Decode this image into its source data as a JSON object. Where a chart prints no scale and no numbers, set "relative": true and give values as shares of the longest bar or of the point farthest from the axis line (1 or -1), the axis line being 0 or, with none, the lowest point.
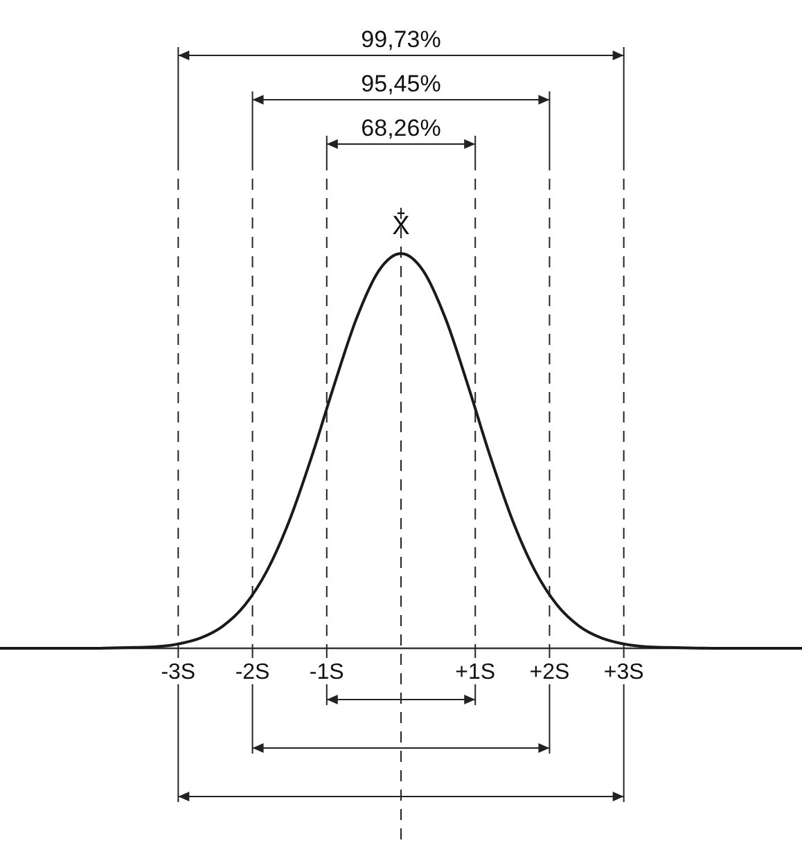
{
  "chart_data": {
    "type": "line",
    "relative": true,
    "xlim": [
      -5.4,
      5.4
    ],
    "x": [
      -5.4,
      -5.1,
      -4.8,
      -4.5,
      -4.2,
      -3.9,
      -3.6,
      -3.3,
      -3.0,
      -2.7,
      -2.4,
      -2.1,
      -1.8,
      -1.5,
      -1.2,
      -0.9,
      -0.6,
      -0.3,
      0,
      0.3,
      0.6,
      0.9,
      1.2,
      1.5,
      1.8,
      2.1,
      2.4,
      2.7,
      3.0,
      3.3,
      3.6,
      3.9,
      4.2,
      4.5,
      4.8,
      5.1,
      5.4
    ],
    "series": [
      {
        "color": "#1a1a1a",
        "values": [
          0,
          0,
          0,
          0,
          0,
          0.001,
          0.002,
          0.004,
          0.011,
          0.026,
          0.056,
          0.11,
          0.198,
          0.325,
          0.487,
          0.667,
          0.835,
          0.956,
          1,
          0.956,
          0.835,
          0.667,
          0.487,
          0.325,
          0.198,
          0.11,
          0.056,
          0.026,
          0.011,
          0.004,
          0.002,
          0.001,
          0,
          0,
          0,
          0,
          0
        ]
      }
    ],
    "xticks": [
      {
        "value": -3,
        "label": "-3S"
      },
      {
        "value": -2,
        "label": "-2S"
      },
      {
        "value": -1,
        "label": "-1S"
      },
      {
        "value": 1,
        "label": "+1S"
      },
      {
        "value": 2,
        "label": "+2S"
      },
      {
        "value": 3,
        "label": "+3S"
      }
    ],
    "tick_labels": "x",
    "ref_lines": [
      {
        "axis": "x",
        "value": -3,
        "line_style": "dashed"
      },
      {
        "axis": "x",
        "value": -2,
        "line_style": "dashed"
      },
      {
        "axis": "x",
        "value": -1,
        "line_style": "dashed"
      },
      {
        "axis": "x",
        "value": 0,
        "line_style": "dashed"
      },
      {
        "axis": "x",
        "value": 1,
        "line_style": "dashed"
      },
      {
        "axis": "x",
        "value": 2,
        "line_style": "dashed"
      },
      {
        "axis": "x",
        "value": 3,
        "line_style": "dashed"
      }
    ],
    "annotations": [
      "99,73%",
      "95,45%",
      "68,26%",
      {
        "text": "X̄",
        "x": 0,
        "y": 1
      }
    ],
    "line_style": "solid",
    "marker": "none"
  }
}
